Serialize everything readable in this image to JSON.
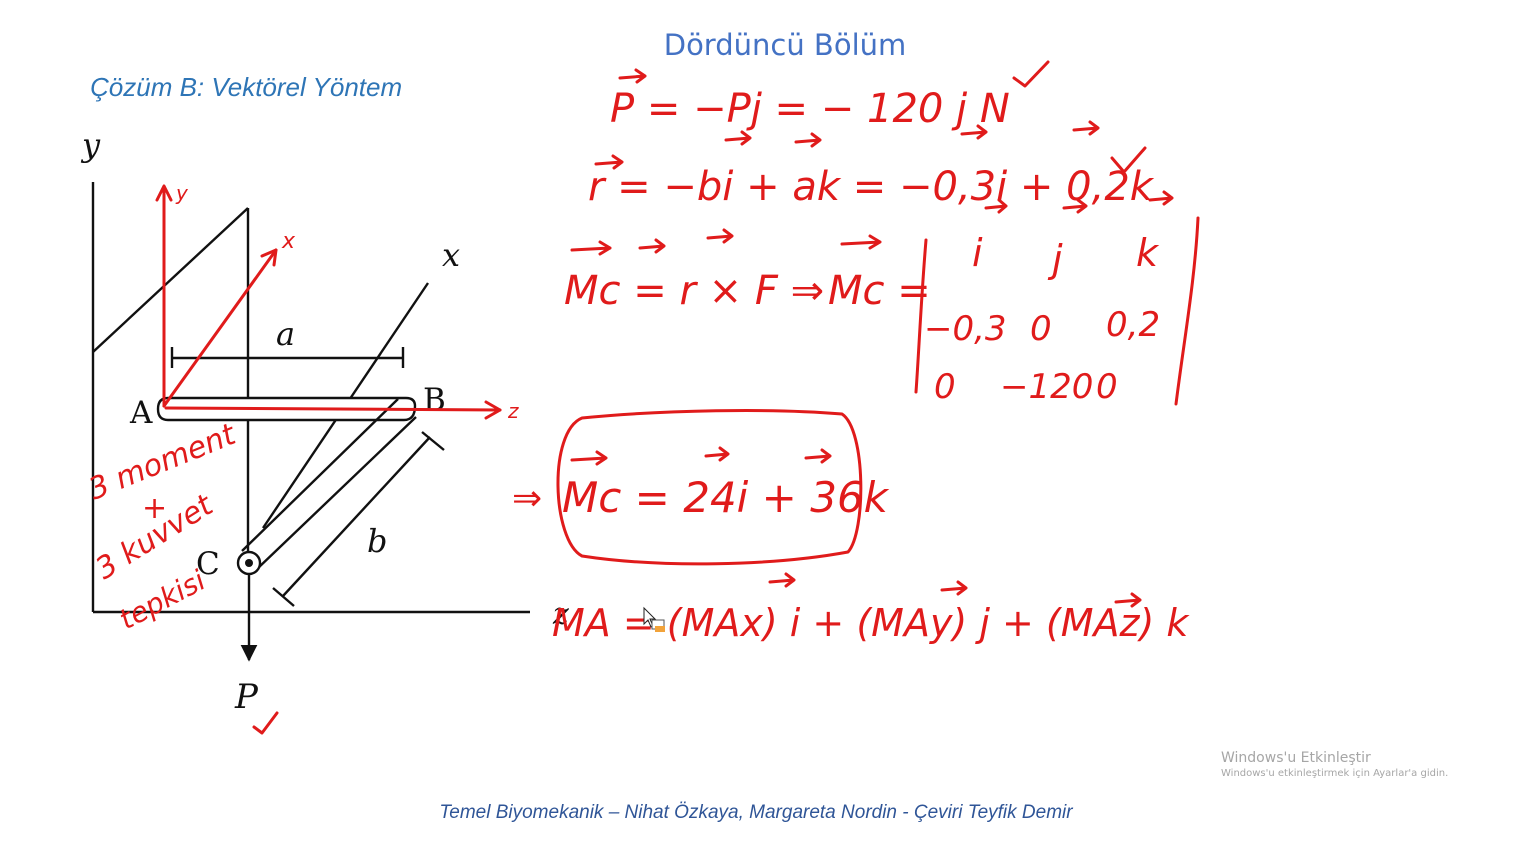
{
  "slide": {
    "title": "Dördüncü Bölüm",
    "subtitle": "Çözüm B: Vektörel Yöntem",
    "footer": "Temel Biyomekanik – Nihat Özkaya, Margareta Nordin - Çeviri Teyfik Demir"
  },
  "figure": {
    "labels": {
      "y": "y",
      "x": "x",
      "z": "z",
      "a": "a",
      "b": "b",
      "A": "A",
      "B": "B",
      "C": "C",
      "P": "P"
    }
  },
  "annotations": {
    "axis_y": "y",
    "axis_x": "x",
    "axis_z": "z",
    "note_line1": "3 moment",
    "note_plus": "+",
    "note_line2": "3 kuvvet",
    "note_line3": "tepkisi"
  },
  "equations": {
    "p_vector": "P = −Pj = − 120 j N",
    "r_vector": "r = −bi + ak = −0,3i + 0,2k",
    "moment_def": "Mc = r × F  ⇒",
    "moment_lhs": "Mc =",
    "matrix": [
      [
        "i",
        "j",
        "k"
      ],
      [
        "−0,3",
        "0",
        "0,2"
      ],
      [
        "0",
        "−120",
        "0"
      ]
    ],
    "result_arrow": "⇒",
    "result": "Mc = 24i + 36k",
    "ma_expression": "MA = (MAx) i + (MAy) j + (MAz) k"
  },
  "colors": {
    "title": "#4472c4",
    "subtitle": "#2e75b6",
    "footer": "#2f5597",
    "ink": "#e01b1b",
    "figure": "#111111"
  },
  "watermark": {
    "line1": "Windows'u Etkinleştir",
    "line2": "Windows'u etkinleştirmek için Ayarlar'a gidin."
  },
  "icons": [
    "mouse-cursor-icon",
    "check-mark-icon"
  ]
}
